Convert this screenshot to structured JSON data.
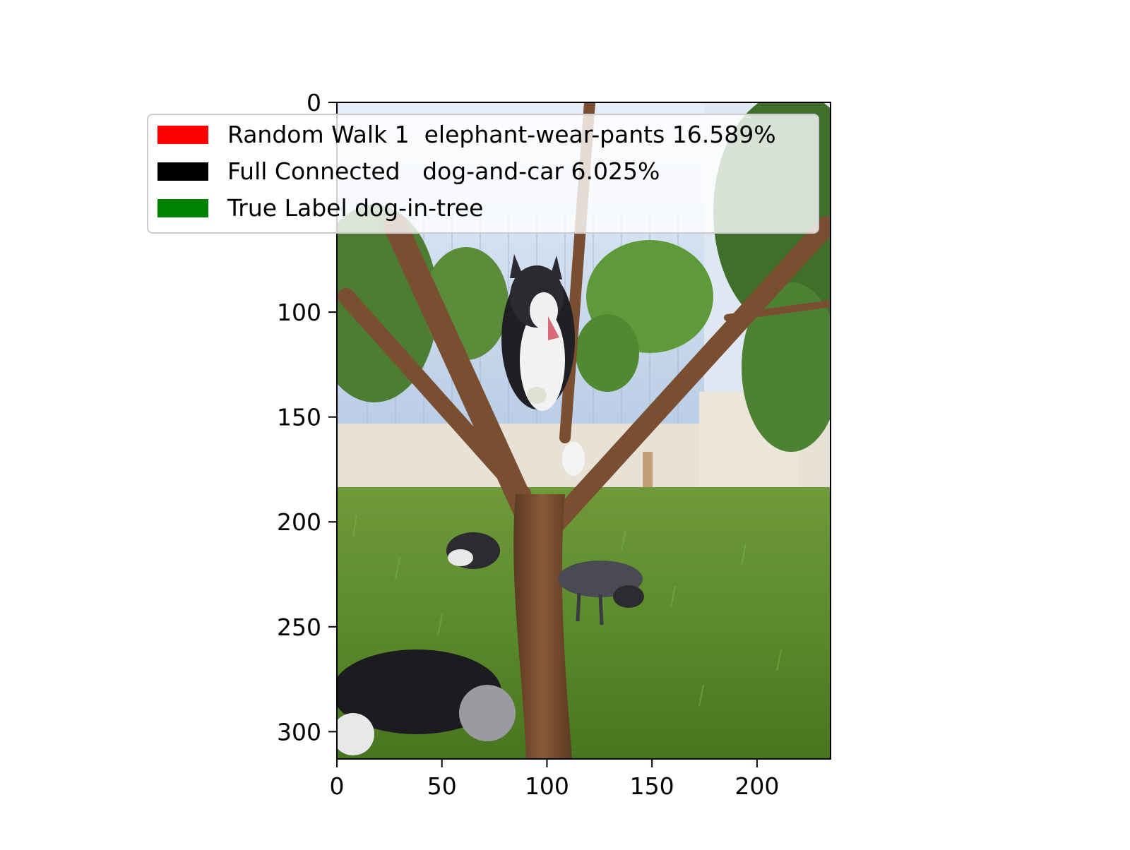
{
  "chart_data": {
    "type": "image",
    "x_ticks": [
      0,
      50,
      100,
      150,
      200
    ],
    "y_ticks": [
      0,
      100,
      150,
      200,
      250,
      300
    ],
    "xlim": [
      0,
      235
    ],
    "ylim": [
      313,
      0
    ],
    "legend_position": "top-left",
    "legend": [
      {
        "label": "Random Walk 1  elephant-wear-pants 16.589%",
        "color": "#ff0000"
      },
      {
        "label": "Full Connected   dog-and-car 6.025%",
        "color": "#000000"
      },
      {
        "label": "True Label dog-in-tree",
        "color": "#008000"
      }
    ]
  }
}
